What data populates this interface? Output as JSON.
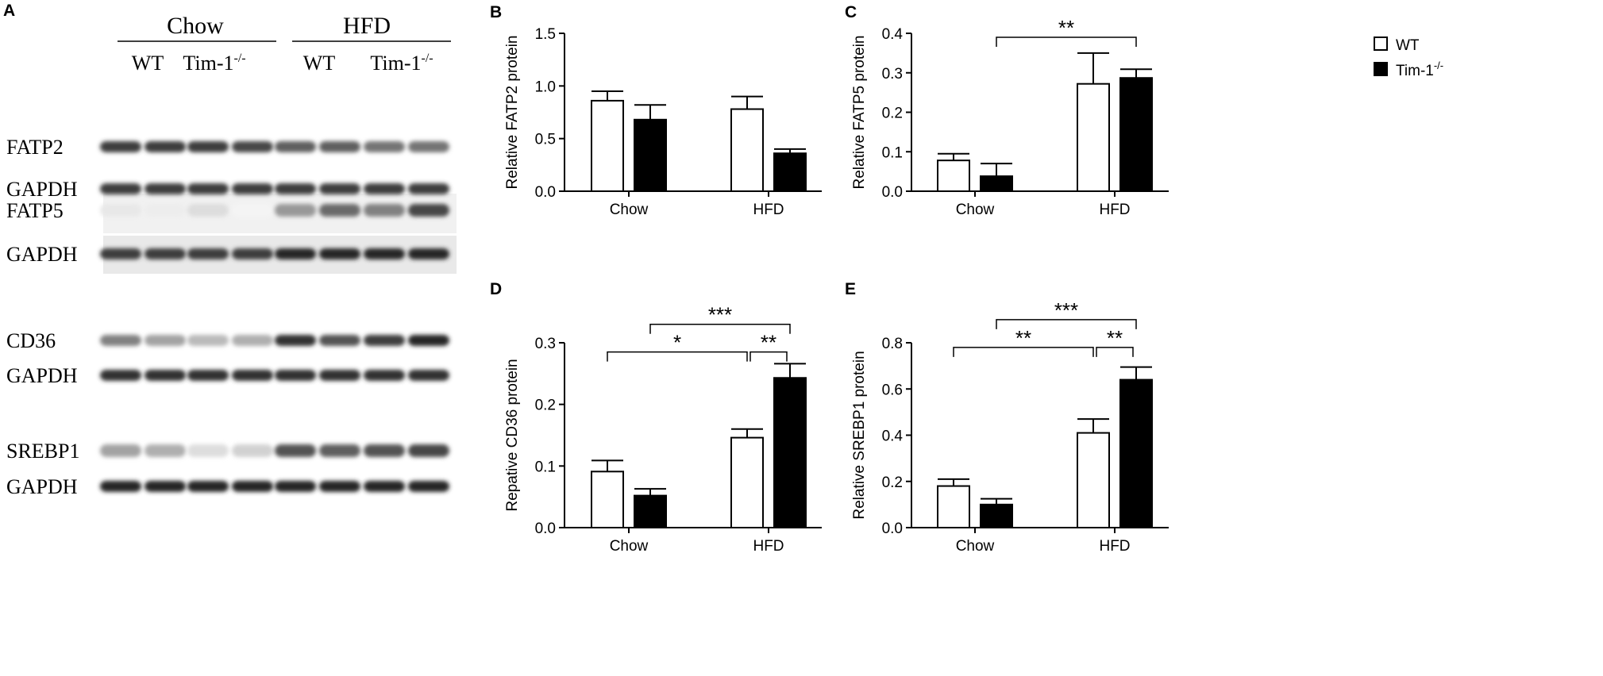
{
  "panel_a": {
    "letter": "A",
    "groups": [
      "Chow",
      "HFD"
    ],
    "genotypes": [
      "WT",
      "Tim-1",
      "WT",
      "Tim-1"
    ],
    "genotype_superscript": "-/-",
    "blots": [
      {
        "label": "FATP2",
        "intensity": [
          0.85,
          0.85,
          0.85,
          0.8,
          0.7,
          0.7,
          0.6,
          0.6
        ]
      },
      {
        "label": "GAPDH",
        "intensity": [
          0.85,
          0.85,
          0.85,
          0.85,
          0.85,
          0.85,
          0.85,
          0.85
        ]
      },
      {
        "label": "FATP5",
        "intensity": [
          0.1,
          0.08,
          0.15,
          0.05,
          0.45,
          0.65,
          0.55,
          0.8
        ]
      },
      {
        "label": "GAPDH",
        "intensity": [
          0.85,
          0.85,
          0.85,
          0.85,
          0.95,
          0.95,
          0.95,
          0.95
        ]
      },
      {
        "label": "CD36",
        "intensity": [
          0.55,
          0.4,
          0.3,
          0.35,
          0.9,
          0.75,
          0.85,
          0.95
        ]
      },
      {
        "label": "GAPDH",
        "intensity": [
          0.9,
          0.9,
          0.9,
          0.9,
          0.9,
          0.9,
          0.9,
          0.9
        ]
      },
      {
        "label": "SREBP1",
        "intensity": [
          0.4,
          0.35,
          0.15,
          0.2,
          0.75,
          0.7,
          0.75,
          0.8
        ]
      },
      {
        "label": "GAPDH",
        "intensity": [
          0.95,
          0.95,
          0.95,
          0.95,
          0.95,
          0.95,
          0.95,
          0.95
        ]
      }
    ]
  },
  "legend": {
    "entries": [
      {
        "label": "WT",
        "color": "#ffffff"
      },
      {
        "label": "Tim-1",
        "superscript": "-/-",
        "color": "#000000"
      }
    ]
  },
  "chart_data": [
    {
      "letter": "B",
      "type": "bar",
      "categories": [
        "Chow",
        "HFD"
      ],
      "series": [
        {
          "color": "#ffffff",
          "values": [
            0.86,
            0.78
          ],
          "errors": [
            0.09,
            0.12
          ]
        },
        {
          "color": "#000000",
          "values": [
            0.68,
            0.36
          ],
          "errors": [
            0.14,
            0.04
          ]
        }
      ],
      "ylabel": "Relative FATP2 protein",
      "ylim": [
        0,
        1.5
      ],
      "yticks": [
        "0.0",
        "0.5",
        "1.0",
        "1.5"
      ],
      "significance": []
    },
    {
      "letter": "C",
      "type": "bar",
      "categories": [
        "Chow",
        "HFD"
      ],
      "series": [
        {
          "color": "#ffffff",
          "values": [
            0.078,
            0.272
          ],
          "errors": [
            0.017,
            0.078
          ]
        },
        {
          "color": "#000000",
          "values": [
            0.038,
            0.287
          ],
          "errors": [
            0.032,
            0.022
          ]
        }
      ],
      "ylabel": "Relative FATP5 protein",
      "ylim": [
        0,
        0.4
      ],
      "yticks": [
        "0.0",
        "0.1",
        "0.2",
        "0.3",
        "0.4"
      ],
      "significance": [
        {
          "from": [
            0,
            1
          ],
          "to": [
            1,
            1
          ],
          "label": "**",
          "level": 0.39
        }
      ]
    },
    {
      "letter": "D",
      "type": "bar",
      "categories": [
        "Chow",
        "HFD"
      ],
      "series": [
        {
          "color": "#ffffff",
          "values": [
            0.091,
            0.146
          ],
          "errors": [
            0.018,
            0.014
          ]
        },
        {
          "color": "#000000",
          "values": [
            0.052,
            0.243
          ],
          "errors": [
            0.011,
            0.023
          ]
        }
      ],
      "ylabel": "Repative CD36 protein",
      "ylim": [
        0,
        0.3
      ],
      "yticks": [
        "0.0",
        "0.1",
        "0.2",
        "0.3"
      ],
      "significance": [
        {
          "from": [
            0,
            0
          ],
          "to": [
            1,
            0
          ],
          "label": "*",
          "level": 0.285
        },
        {
          "from": [
            1,
            0
          ],
          "to": [
            1,
            1
          ],
          "label": "**",
          "level": 0.285
        },
        {
          "from": [
            0,
            1
          ],
          "to": [
            1,
            1
          ],
          "label": "***",
          "level": 0.33
        }
      ]
    },
    {
      "letter": "E",
      "type": "bar",
      "categories": [
        "Chow",
        "HFD"
      ],
      "series": [
        {
          "color": "#ffffff",
          "values": [
            0.18,
            0.41
          ],
          "errors": [
            0.03,
            0.06
          ]
        },
        {
          "color": "#000000",
          "values": [
            0.1,
            0.64
          ],
          "errors": [
            0.025,
            0.055
          ]
        }
      ],
      "ylabel": "Relative SREBP1 protein",
      "ylim": [
        0,
        0.8
      ],
      "yticks": [
        "0.0",
        "0.2",
        "0.4",
        "0.6",
        "0.8"
      ],
      "significance": [
        {
          "from": [
            0,
            0
          ],
          "to": [
            1,
            0
          ],
          "label": "**",
          "level": 0.78
        },
        {
          "from": [
            1,
            0
          ],
          "to": [
            1,
            1
          ],
          "label": "**",
          "level": 0.78
        },
        {
          "from": [
            0,
            1
          ],
          "to": [
            1,
            1
          ],
          "label": "***",
          "level": 0.9
        }
      ]
    }
  ]
}
